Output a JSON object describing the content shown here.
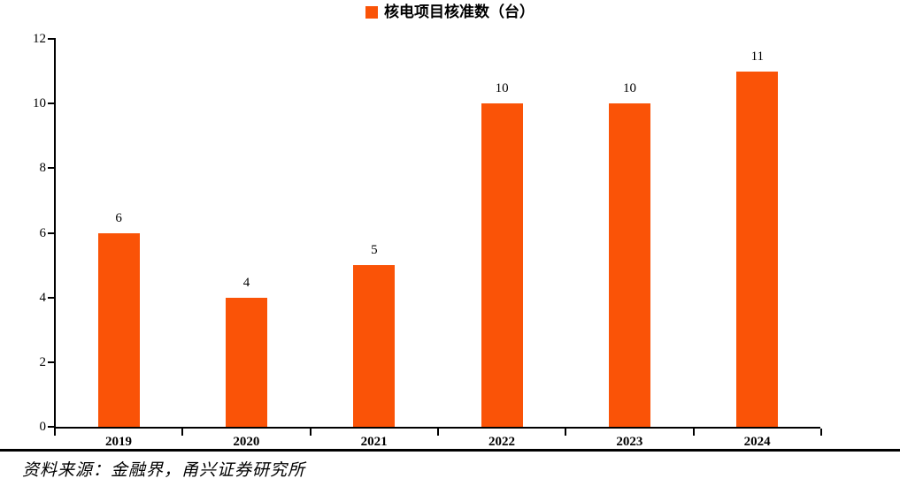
{
  "legend": {
    "label": "核电项目核准数（台）"
  },
  "chart_data": {
    "type": "bar",
    "title": "核电项目核准数（台）",
    "categories": [
      "2019",
      "2020",
      "2021",
      "2022",
      "2023",
      "2024"
    ],
    "values": [
      6,
      4,
      5,
      10,
      10,
      11
    ],
    "xlabel": "",
    "ylabel": "",
    "ylim": [
      0,
      12
    ],
    "yticks": [
      0,
      2,
      4,
      6,
      8,
      10,
      12
    ],
    "bar_color": "#FA5307",
    "axis_color": "#000000",
    "grid": false,
    "legend_position": "top-center",
    "data_labels": true
  },
  "source_note": "资料来源：金融界，甬兴证券研究所"
}
